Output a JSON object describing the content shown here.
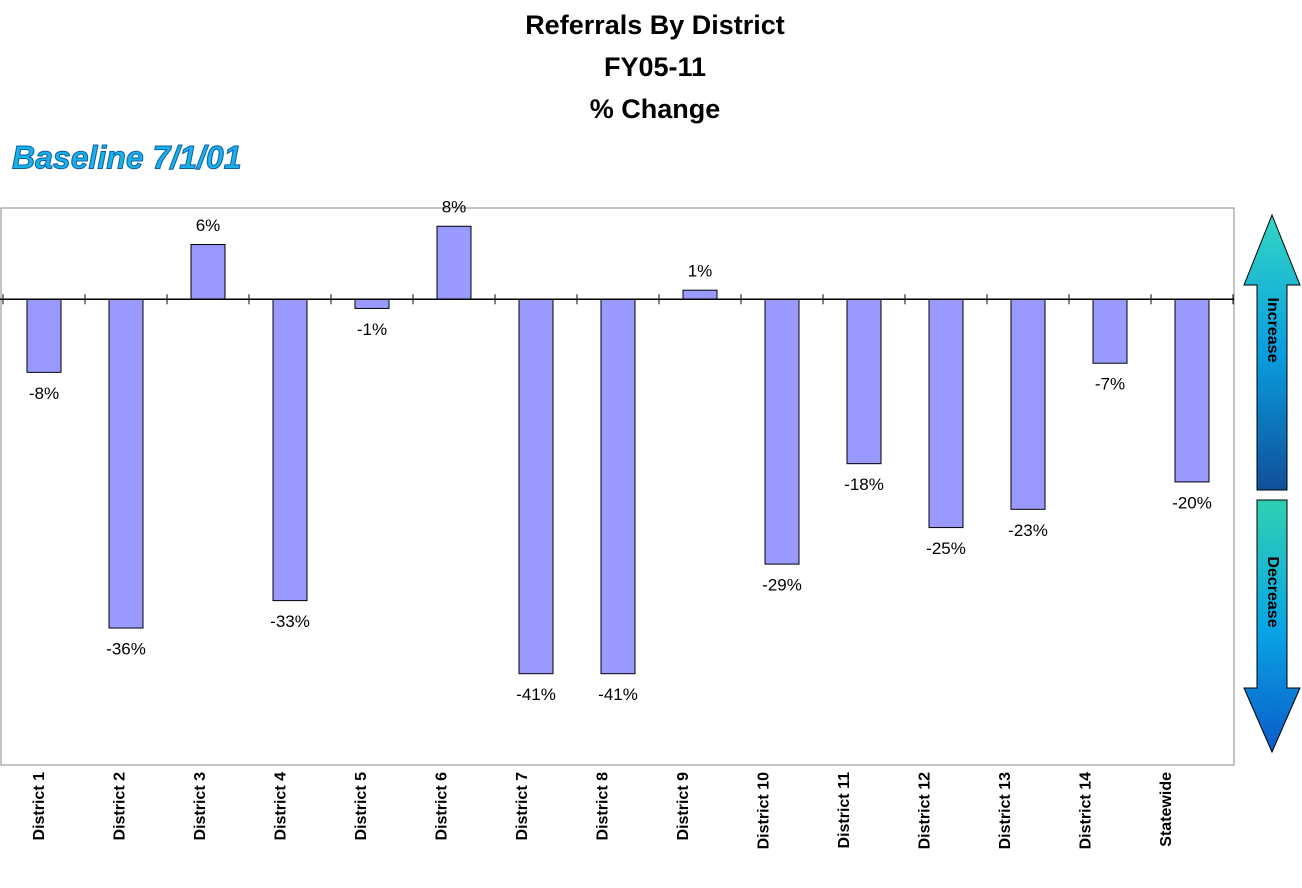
{
  "chart_data": {
    "type": "bar",
    "title": [
      "Referrals By District",
      "FY05-11",
      "% Change"
    ],
    "subtitle": "Baseline 7/1/01",
    "categories": [
      "District 1",
      "District 2",
      "District 3",
      "District 4",
      "District 5",
      "District 6",
      "District 7",
      "District 8",
      "District 9",
      "District 10",
      "District 11",
      "District 12",
      "District 13",
      "District 14",
      "Statewide"
    ],
    "values": [
      -8,
      -36,
      6,
      -33,
      -1,
      8,
      -41,
      -41,
      1,
      -29,
      -18,
      -25,
      -23,
      -7,
      -20
    ],
    "value_labels": [
      "-8%",
      "-36%",
      "6%",
      "-33%",
      "-1%",
      "8%",
      "-41%",
      "-41%",
      "1%",
      "-29%",
      "-18%",
      "-25%",
      "-23%",
      "-7%",
      "-20%"
    ],
    "color": "#9999ff",
    "ylim": [
      -51,
      10
    ],
    "annotations": [
      "Increase",
      "Decrease"
    ]
  }
}
